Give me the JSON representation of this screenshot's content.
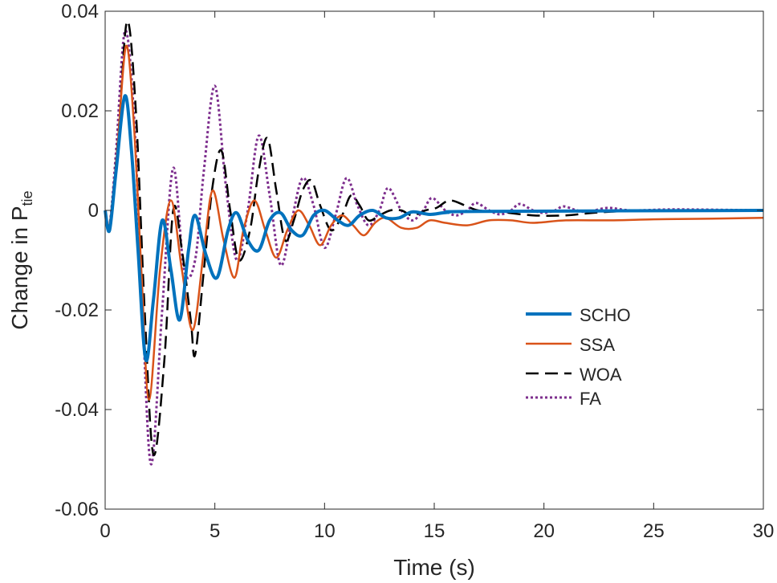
{
  "chart_data": {
    "type": "line",
    "title": "",
    "xlabel": "Time (s)",
    "ylabel_main": "Change in P",
    "ylabel_sub": "tie",
    "xlim": [
      0,
      30
    ],
    "ylim": [
      -0.06,
      0.04
    ],
    "x_ticks": [
      0,
      5,
      10,
      15,
      20,
      25,
      30
    ],
    "x_tick_labels": [
      "0",
      "5",
      "10",
      "15",
      "20",
      "25",
      "30"
    ],
    "y_ticks": [
      -0.06,
      -0.04,
      -0.02,
      0,
      0.02,
      0.04
    ],
    "y_tick_labels": [
      "-0.06",
      "-0.04",
      "-0.02",
      "0",
      "0.02",
      "0.04"
    ],
    "grid": false,
    "legend_position": "center-right",
    "series": [
      {
        "name": "SCHO",
        "color": "#0072BD",
        "style": "solid",
        "points": [
          [
            0,
            0
          ],
          [
            0.2,
            -0.004
          ],
          [
            0.5,
            0.008
          ],
          [
            0.9,
            0.023
          ],
          [
            1.2,
            0.012
          ],
          [
            1.5,
            -0.008
          ],
          [
            1.85,
            -0.03
          ],
          [
            2.2,
            -0.018
          ],
          [
            2.6,
            -0.002
          ],
          [
            3.0,
            -0.012
          ],
          [
            3.4,
            -0.022
          ],
          [
            3.8,
            -0.008
          ],
          [
            4.1,
            -0.001
          ],
          [
            4.6,
            -0.009
          ],
          [
            5.1,
            -0.0135
          ],
          [
            5.6,
            -0.004
          ],
          [
            6.0,
            -0.0005
          ],
          [
            6.5,
            -0.006
          ],
          [
            7.0,
            -0.008
          ],
          [
            7.5,
            -0.002
          ],
          [
            8.0,
            -0.0005
          ],
          [
            8.5,
            -0.004
          ],
          [
            9.0,
            -0.005
          ],
          [
            9.5,
            -0.001
          ],
          [
            10.0,
            0.0
          ],
          [
            10.6,
            -0.002
          ],
          [
            11.1,
            -0.003
          ],
          [
            11.6,
            -0.001
          ],
          [
            12.2,
            0.0
          ],
          [
            12.8,
            -0.0015
          ],
          [
            13.4,
            -0.0015
          ],
          [
            14.0,
            -0.0003
          ],
          [
            14.8,
            -0.0008
          ],
          [
            15.6,
            -0.0004
          ],
          [
            17.0,
            -0.0002
          ],
          [
            30,
            0
          ]
        ]
      },
      {
        "name": "SSA",
        "color": "#D95319",
        "style": "solid",
        "points": [
          [
            0,
            0
          ],
          [
            0.2,
            -0.003
          ],
          [
            0.55,
            0.012
          ],
          [
            0.95,
            0.033
          ],
          [
            1.3,
            0.018
          ],
          [
            1.65,
            -0.012
          ],
          [
            2.0,
            -0.038
          ],
          [
            2.5,
            -0.012
          ],
          [
            3.0,
            0.002
          ],
          [
            3.5,
            -0.012
          ],
          [
            4.0,
            -0.024
          ],
          [
            4.5,
            -0.008
          ],
          [
            4.9,
            0.004
          ],
          [
            5.4,
            -0.006
          ],
          [
            5.9,
            -0.0135
          ],
          [
            6.3,
            -0.004
          ],
          [
            6.8,
            0.002
          ],
          [
            7.3,
            -0.004
          ],
          [
            7.8,
            -0.0095
          ],
          [
            8.3,
            -0.004
          ],
          [
            8.8,
            0.0
          ],
          [
            9.3,
            -0.003
          ],
          [
            9.8,
            -0.007
          ],
          [
            10.3,
            -0.003
          ],
          [
            10.8,
            -0.001
          ],
          [
            11.3,
            -0.003
          ],
          [
            11.8,
            -0.005
          ],
          [
            12.3,
            -0.0025
          ],
          [
            12.8,
            -0.0015
          ],
          [
            13.5,
            -0.0035
          ],
          [
            14.2,
            -0.0035
          ],
          [
            14.8,
            -0.002
          ],
          [
            15.5,
            -0.0025
          ],
          [
            16.5,
            -0.003
          ],
          [
            17.5,
            -0.002
          ],
          [
            18.5,
            -0.002
          ],
          [
            19.5,
            -0.0025
          ],
          [
            21.0,
            -0.002
          ],
          [
            23.0,
            -0.002
          ],
          [
            25.0,
            -0.0018
          ],
          [
            27.0,
            -0.0017
          ],
          [
            30,
            -0.0015
          ]
        ]
      },
      {
        "name": "WOA",
        "color": "#000000",
        "style": "dashed",
        "points": [
          [
            0,
            0
          ],
          [
            0.2,
            -0.003
          ],
          [
            0.6,
            0.015
          ],
          [
            1.0,
            0.038
          ],
          [
            1.4,
            0.02
          ],
          [
            1.8,
            -0.02
          ],
          [
            2.2,
            -0.049
          ],
          [
            2.7,
            -0.03
          ],
          [
            3.1,
            0.0
          ],
          [
            3.5,
            -0.008
          ],
          [
            3.9,
            -0.022
          ],
          [
            4.1,
            -0.029
          ],
          [
            4.5,
            -0.012
          ],
          [
            4.9,
            0.005
          ],
          [
            5.3,
            0.012
          ],
          [
            5.7,
            0.0
          ],
          [
            6.1,
            -0.01
          ],
          [
            6.6,
            -0.004
          ],
          [
            7.0,
            0.008
          ],
          [
            7.4,
            0.0145
          ],
          [
            7.8,
            0.004
          ],
          [
            8.2,
            -0.006
          ],
          [
            8.6,
            -0.002
          ],
          [
            9.0,
            0.004
          ],
          [
            9.4,
            0.006
          ],
          [
            9.8,
            0.001
          ],
          [
            10.3,
            -0.004
          ],
          [
            10.8,
            -0.001
          ],
          [
            11.2,
            0.003
          ],
          [
            11.6,
            0.001
          ],
          [
            12.0,
            -0.002
          ],
          [
            12.5,
            -0.001
          ],
          [
            13.0,
            0.0
          ],
          [
            13.5,
            0.0
          ],
          [
            14.0,
            -0.001
          ],
          [
            14.6,
            0.0
          ],
          [
            15.1,
            0.0005
          ],
          [
            15.7,
            0.002
          ],
          [
            16.4,
            0.001
          ],
          [
            17.0,
            0.0
          ],
          [
            18.0,
            -0.0003
          ],
          [
            19.5,
            -0.001
          ],
          [
            21.0,
            -0.001
          ],
          [
            22.5,
            -0.0004
          ],
          [
            25.0,
            0.0
          ],
          [
            30,
            0
          ]
        ]
      },
      {
        "name": "FA",
        "color": "#7E2F8E",
        "style": "dotted",
        "points": [
          [
            0,
            0
          ],
          [
            0.2,
            -0.003
          ],
          [
            0.5,
            0.012
          ],
          [
            0.9,
            0.036
          ],
          [
            1.3,
            0.02
          ],
          [
            1.7,
            -0.02
          ],
          [
            2.1,
            -0.051
          ],
          [
            2.6,
            -0.02
          ],
          [
            3.1,
            0.0085
          ],
          [
            3.6,
            -0.012
          ],
          [
            4.1,
            -0.01
          ],
          [
            4.5,
            0.008
          ],
          [
            5.0,
            0.025
          ],
          [
            5.5,
            0.005
          ],
          [
            6.0,
            -0.01
          ],
          [
            6.5,
            0.0
          ],
          [
            7.0,
            0.015
          ],
          [
            7.5,
            0.003
          ],
          [
            8.0,
            -0.011
          ],
          [
            8.5,
            -0.002
          ],
          [
            9.0,
            0.0065
          ],
          [
            9.5,
            0.001
          ],
          [
            10.0,
            -0.0075
          ],
          [
            10.5,
            -0.001
          ],
          [
            11.0,
            0.0065
          ],
          [
            11.5,
            0.001
          ],
          [
            12.0,
            -0.003
          ],
          [
            12.5,
            0.0
          ],
          [
            12.9,
            0.0045
          ],
          [
            13.5,
            0.0
          ],
          [
            14.0,
            -0.002
          ],
          [
            14.5,
            0.0
          ],
          [
            14.9,
            0.0025
          ],
          [
            15.5,
            0.0
          ],
          [
            16.0,
            -0.001
          ],
          [
            16.5,
            0.0
          ],
          [
            16.9,
            0.0015
          ],
          [
            17.5,
            0.0
          ],
          [
            18.0,
            -0.0008
          ],
          [
            18.5,
            0.0
          ],
          [
            18.9,
            0.0013
          ],
          [
            19.5,
            0.0
          ],
          [
            20.0,
            -0.0005
          ],
          [
            20.5,
            0.0
          ],
          [
            20.9,
            0.0008
          ],
          [
            21.5,
            0.0
          ],
          [
            22.0,
            -0.0003
          ],
          [
            22.9,
            0.0005
          ],
          [
            24.0,
            0.0
          ],
          [
            26.0,
            0.0002
          ],
          [
            30,
            0
          ]
        ]
      }
    ]
  }
}
